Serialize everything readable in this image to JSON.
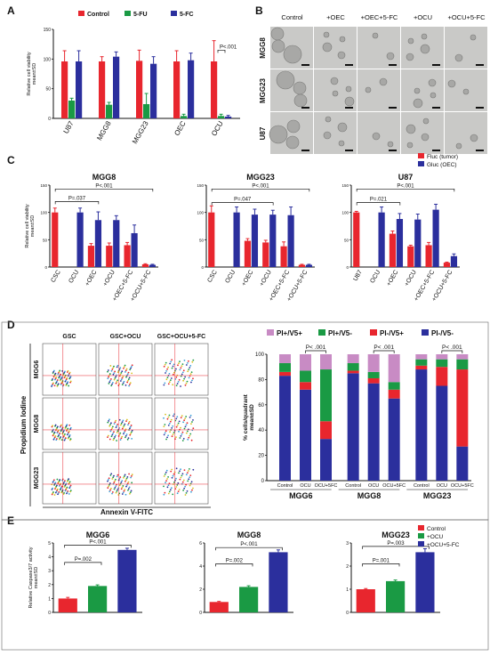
{
  "figure": {
    "panel_letters": [
      "A",
      "B",
      "C",
      "D",
      "E"
    ],
    "colors": {
      "red": "#e8262e",
      "green": "#1a9a44",
      "blue": "#2b2f9d",
      "pink": "#c88bc4",
      "flow_red": "#e8262e",
      "flow_blue": "#2b2f9d"
    }
  },
  "chart_data": [
    {
      "panel": "A",
      "type": "bar",
      "ylabel_lines": [
        "Relative cell viability",
        "mean±SD"
      ],
      "ylim": [
        0,
        150
      ],
      "yticks": [
        "0",
        "50",
        "100",
        "150"
      ],
      "categories": [
        "U87",
        "MGG8",
        "MGG23",
        "OEC",
        "OCU"
      ],
      "legend": [
        "Control",
        "5-FU",
        "5-FC"
      ],
      "series": [
        {
          "name": "Control",
          "values": [
            96,
            96,
            97,
            96,
            96
          ],
          "err": [
            18,
            8,
            18,
            18,
            35
          ]
        },
        {
          "name": "5-FU",
          "values": [
            30,
            23,
            24,
            4,
            4
          ],
          "err": [
            4,
            4,
            18,
            3,
            3
          ]
        },
        {
          "name": "5-FC",
          "values": [
            96,
            104,
            92,
            98,
            3
          ],
          "err": [
            18,
            8,
            12,
            12,
            2
          ]
        }
      ],
      "annotations": [
        {
          "label": "P<.001"
        }
      ]
    },
    {
      "panel": "C",
      "type": "bar",
      "title": "MGG8",
      "ylabel_lines": [
        "Relative cell viability",
        "mean±SD"
      ],
      "ylim": [
        0,
        150
      ],
      "yticks": [
        "0",
        "50",
        "100",
        "150"
      ],
      "categories": [
        "CSC",
        "OCU",
        "+OEC",
        "+OCU",
        "+OEC+5-FC",
        "+OCU+5-FC"
      ],
      "series": [
        {
          "name": "Fluc (tumor)",
          "values": [
            100,
            0,
            39,
            39,
            40,
            5
          ],
          "err": [
            8,
            0,
            4,
            5,
            5,
            1
          ]
        },
        {
          "name": "Gluc (OEC)",
          "values": [
            0,
            100,
            86,
            86,
            62,
            4
          ],
          "err": [
            0,
            8,
            15,
            8,
            15,
            1
          ]
        }
      ],
      "annotations": [
        {
          "label": "P=.037"
        },
        {
          "label": "P<.001"
        }
      ]
    },
    {
      "panel": "C",
      "type": "bar",
      "title": "MGG23",
      "ylim": [
        0,
        150
      ],
      "yticks": [
        "0",
        "50",
        "100",
        "150"
      ],
      "categories": [
        "CSC",
        "OCU",
        "+OEC",
        "+OCU",
        "+OEC+5-FC",
        "+OCU+5-FC"
      ],
      "series": [
        {
          "name": "Fluc (tumor)",
          "values": [
            100,
            0,
            48,
            45,
            38,
            4
          ],
          "err": [
            12,
            0,
            4,
            4,
            8,
            1
          ]
        },
        {
          "name": "Gluc (OEC)",
          "values": [
            0,
            100,
            96,
            96,
            95,
            4
          ],
          "err": [
            0,
            10,
            10,
            8,
            15,
            1
          ]
        }
      ],
      "annotations": [
        {
          "label": "P=.047"
        },
        {
          "label": "P<.001"
        }
      ]
    },
    {
      "panel": "C",
      "type": "bar",
      "title": "U87",
      "ylim": [
        0,
        150
      ],
      "yticks": [
        "0",
        "50",
        "100",
        "150"
      ],
      "categories": [
        "U87",
        "OCU",
        "+OEC",
        "+OCU",
        "+OEC+5-FC",
        "+OCU+5-FC"
      ],
      "legend": [
        "Fluc (tumor)",
        "Gluc (OEC)"
      ],
      "series": [
        {
          "name": "Fluc (tumor)",
          "values": [
            100,
            0,
            61,
            38,
            40,
            8
          ],
          "err": [
            2,
            0,
            5,
            2,
            5,
            1
          ]
        },
        {
          "name": "Gluc (OEC)",
          "values": [
            0,
            100,
            88,
            87,
            105,
            20
          ],
          "err": [
            0,
            10,
            10,
            10,
            10,
            4
          ]
        }
      ],
      "annotations": [
        {
          "label": "P=.021"
        },
        {
          "label": "P<.001"
        }
      ]
    },
    {
      "panel": "D",
      "type": "bar",
      "subtype": "stacked",
      "ylabel_lines": [
        "% cells/quadrant",
        "mean±SD"
      ],
      "ylim": [
        0,
        100
      ],
      "yticks": [
        "0",
        "20",
        "40",
        "60",
        "80",
        "100"
      ],
      "groups": [
        "MGG6",
        "MGG8",
        "MGG23"
      ],
      "categories": [
        "Control",
        "OCU",
        "OCU+5FC"
      ],
      "legend": [
        "PI+/V5+",
        "PI+/V5-",
        "PI-/V5+",
        "PI-/V5-"
      ],
      "stacks": [
        {
          "group": "MGG6",
          "cat": "Control",
          "values": {
            "PI-/V5-": 83,
            "PI-/V5+": 3,
            "PI+/V5-": 7,
            "PI+/V5+": 7
          }
        },
        {
          "group": "MGG6",
          "cat": "OCU",
          "values": {
            "PI-/V5-": 72,
            "PI-/V5+": 6,
            "PI+/V5-": 9,
            "PI+/V5+": 13
          }
        },
        {
          "group": "MGG6",
          "cat": "OCU+5FC",
          "values": {
            "PI-/V5-": 33,
            "PI-/V5+": 14,
            "PI+/V5-": 41,
            "PI+/V5+": 12
          }
        },
        {
          "group": "MGG8",
          "cat": "Control",
          "values": {
            "PI-/V5-": 85,
            "PI-/V5+": 2,
            "PI+/V5-": 6,
            "PI+/V5+": 7
          }
        },
        {
          "group": "MGG8",
          "cat": "OCU",
          "values": {
            "PI-/V5-": 77,
            "PI-/V5+": 4,
            "PI+/V5-": 5,
            "PI+/V5+": 14
          }
        },
        {
          "group": "MGG8",
          "cat": "OCU+5FC",
          "values": {
            "PI-/V5-": 65,
            "PI-/V5+": 7,
            "PI+/V5-": 6,
            "PI+/V5+": 22
          }
        },
        {
          "group": "MGG23",
          "cat": "Control",
          "values": {
            "PI-/V5-": 88,
            "PI-/V5+": 3,
            "PI+/V5-": 5,
            "PI+/V5+": 4
          }
        },
        {
          "group": "MGG23",
          "cat": "OCU",
          "values": {
            "PI-/V5-": 75,
            "PI-/V5+": 15,
            "PI+/V5-": 6,
            "PI+/V5+": 4
          }
        },
        {
          "group": "MGG23",
          "cat": "OCU+5FC",
          "values": {
            "PI-/V5-": 27,
            "PI-/V5+": 61,
            "PI+/V5-": 8,
            "PI+/V5+": 4
          }
        }
      ],
      "annotations": [
        {
          "label": "P< .001"
        },
        {
          "label": "P< .001"
        },
        {
          "label": "P< .001"
        }
      ]
    },
    {
      "panel": "E",
      "type": "bar",
      "title": "MGG6",
      "ylabel_lines": [
        "Relative Caspase3/7 activity",
        "mean±SD"
      ],
      "ylim": [
        0,
        5
      ],
      "yticks": [
        "0",
        "1",
        "2",
        "3",
        "4",
        "5"
      ],
      "categories": [
        "Control",
        "+OCU",
        "+OCU+5-FC"
      ],
      "values": [
        1.0,
        1.9,
        4.5
      ],
      "err": [
        0.08,
        0.08,
        0.12
      ],
      "annotations": [
        {
          "label": "P=.002"
        },
        {
          "label": "P<.001"
        }
      ]
    },
    {
      "panel": "E",
      "type": "bar",
      "title": "MGG8",
      "ylim": [
        0,
        6
      ],
      "yticks": [
        "0",
        "2",
        "4",
        "6"
      ],
      "categories": [
        "Control",
        "+OCU",
        "+OCU+5-FC"
      ],
      "values": [
        0.9,
        2.2,
        5.2
      ],
      "err": [
        0.05,
        0.1,
        0.2
      ],
      "annotations": [
        {
          "label": "P=.002"
        },
        {
          "label": "P<.001"
        }
      ]
    },
    {
      "panel": "E",
      "type": "bar",
      "title": "MGG23",
      "ylim": [
        0,
        3
      ],
      "yticks": [
        "0",
        "1",
        "2",
        "3"
      ],
      "categories": [
        "Control",
        "+OCU",
        "+OCU+5-FC"
      ],
      "legend": [
        "Control",
        "+OCU",
        "+OCU+5-FC"
      ],
      "values": [
        1.0,
        1.35,
        2.6
      ],
      "err": [
        0.03,
        0.05,
        0.15
      ],
      "annotations": [
        {
          "label": "P=.001"
        },
        {
          "label": "P=.003"
        }
      ]
    }
  ],
  "microscopy": {
    "columns": [
      "Control",
      "+OEC",
      "+OEC+5-FC",
      "+OCU",
      "+OCU+5-FC"
    ],
    "rows": [
      "MGG8",
      "MGG23",
      "U87"
    ]
  },
  "flow": {
    "columns": [
      "GSC",
      "GSC+OCU",
      "GSC+OCU+5-FC"
    ],
    "rows": [
      "MGG6",
      "MGG8",
      "MGG23"
    ],
    "xlabel": "Annexin V-FITC",
    "ylabel": "Propidium Iodine"
  }
}
